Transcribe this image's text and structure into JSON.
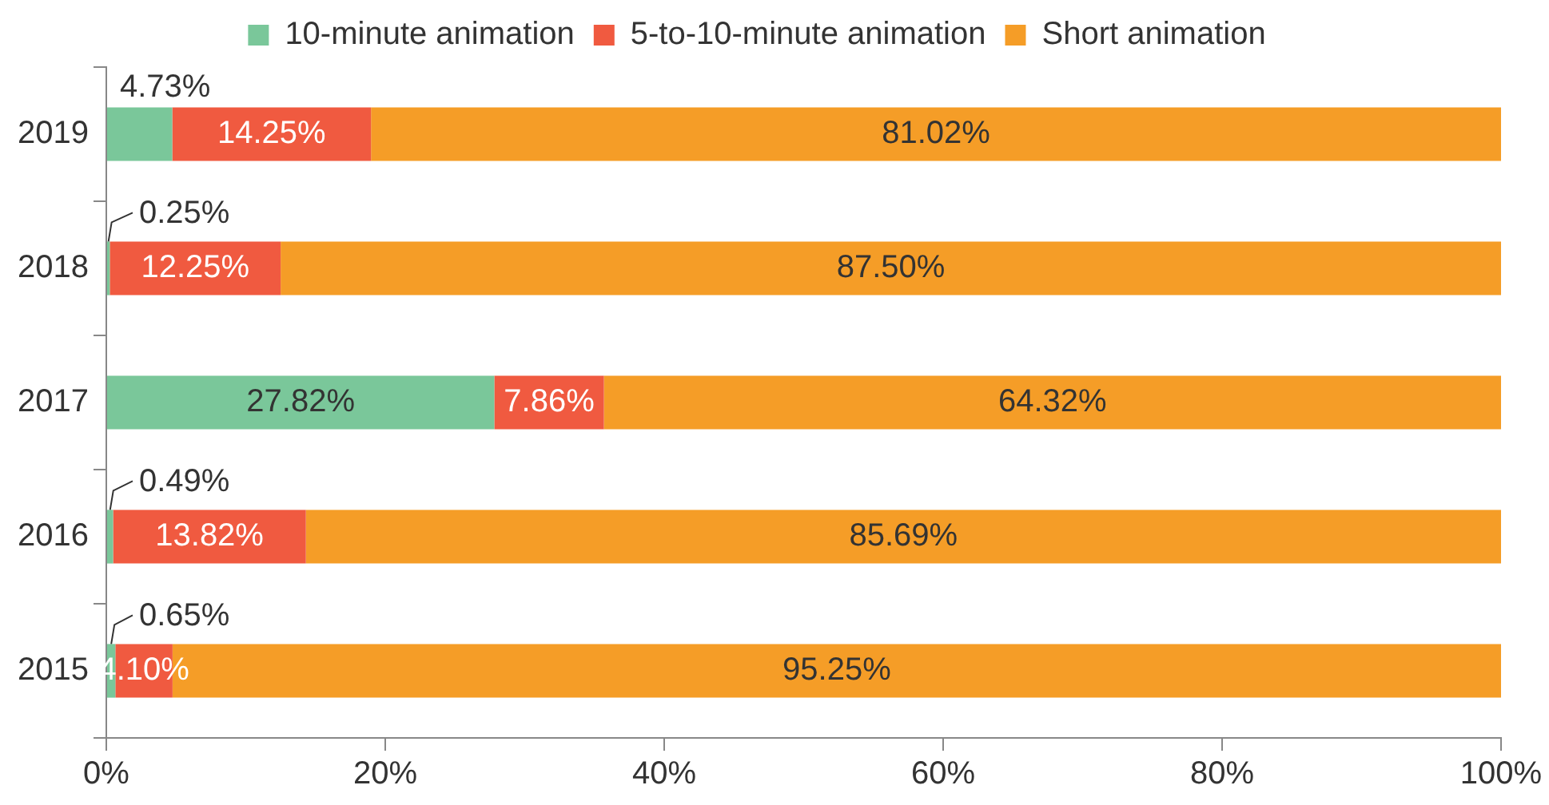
{
  "chart_data": {
    "type": "bar",
    "orientation": "horizontal",
    "stacked": true,
    "legend": "top",
    "grid": false,
    "categories": [
      "2019",
      "2018",
      "2017",
      "2016",
      "2015"
    ],
    "xlim": [
      0,
      100
    ],
    "xticks": [
      {
        "value": 0,
        "label": "0%"
      },
      {
        "value": 20,
        "label": "20%"
      },
      {
        "value": 40,
        "label": "40%"
      },
      {
        "value": 60,
        "label": "60%"
      },
      {
        "value": 80,
        "label": "80%"
      },
      {
        "value": 100,
        "label": "100%"
      }
    ],
    "series": [
      {
        "name": "10-minute animation",
        "color": "#7ac79a",
        "values": [
          4.73,
          0.25,
          27.82,
          0.49,
          0.65
        ],
        "value_labels": [
          "4.73%",
          "0.25%",
          "27.82%",
          "0.49%",
          "0.65%"
        ]
      },
      {
        "name": "5-to-10-minute animation",
        "color": "#f05a40",
        "values": [
          14.25,
          12.25,
          7.86,
          13.82,
          4.1
        ],
        "value_labels": [
          "14.25%",
          "12.25%",
          "7.86%",
          "13.82%",
          "4.10%"
        ]
      },
      {
        "name": "Short animation",
        "color": "#f59d27",
        "values": [
          81.02,
          87.5,
          64.32,
          85.69,
          95.25
        ],
        "value_labels": [
          "81.02%",
          "87.50%",
          "64.32%",
          "85.69%",
          "95.25%"
        ]
      }
    ]
  }
}
